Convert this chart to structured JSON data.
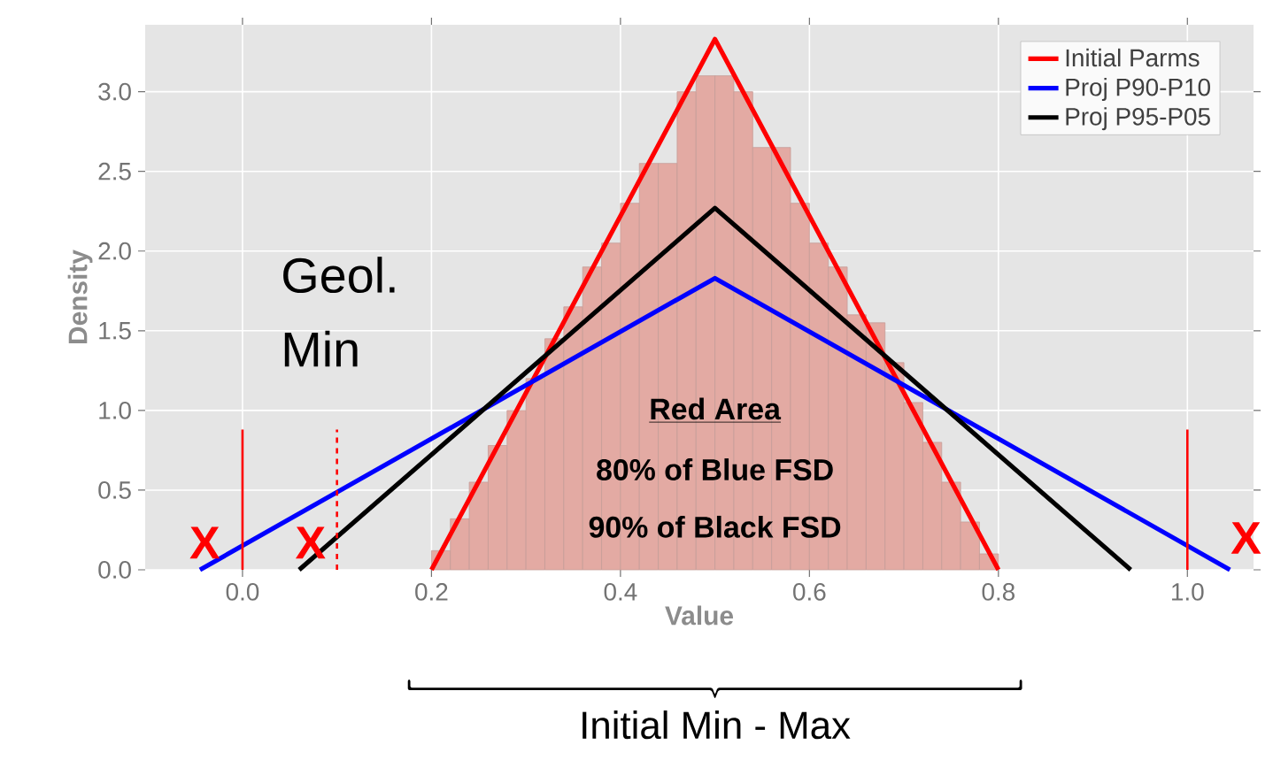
{
  "chart_data": {
    "type": "histogram",
    "xlabel": "Value",
    "ylabel": "Density",
    "bins": [
      0.2,
      0.22,
      0.24,
      0.26,
      0.28,
      0.3,
      0.32,
      0.34,
      0.36,
      0.38,
      0.4,
      0.42,
      0.44,
      0.46,
      0.48,
      0.5,
      0.52,
      0.54,
      0.56,
      0.58,
      0.6,
      0.62,
      0.64,
      0.66,
      0.68,
      0.7,
      0.72,
      0.74,
      0.76,
      0.78,
      0.8
    ],
    "values": [
      0.12,
      0.32,
      0.55,
      0.78,
      1.0,
      1.2,
      1.45,
      1.65,
      1.9,
      2.05,
      2.3,
      2.55,
      2.55,
      3.0,
      3.1,
      3.1,
      3.0,
      2.65,
      2.65,
      2.3,
      2.05,
      1.9,
      1.6,
      1.55,
      1.3,
      1.05,
      0.8,
      0.55,
      0.3,
      0.1
    ],
    "color": "#e3aaa3",
    "series": [
      {
        "type": "line",
        "name": "Initial Parms",
        "color": "#ff0000",
        "x": [
          0.2,
          0.5,
          0.8
        ],
        "values": [
          0,
          3.33,
          0
        ]
      },
      {
        "type": "line",
        "name": "Proj P90-P10",
        "color": "#0000ff",
        "x": [
          -0.045,
          0.5,
          1.045
        ],
        "values": [
          0,
          1.83,
          0
        ]
      },
      {
        "type": "line",
        "name": "Proj P95-P05",
        "color": "#000000",
        "x": [
          0.06,
          0.5,
          0.94
        ],
        "values": [
          0,
          2.27,
          0
        ]
      },
      {
        "type": "line",
        "color": "#ff0000",
        "x": [
          0,
          0
        ],
        "values": [
          0,
          0.88
        ]
      },
      {
        "type": "line",
        "color": "#ff0000",
        "line_style": "dashed",
        "x": [
          0.1,
          0.1
        ],
        "values": [
          0,
          0.88
        ]
      },
      {
        "type": "line",
        "color": "#ff0000",
        "x": [
          1.0,
          1.0
        ],
        "values": [
          0,
          0.88
        ]
      }
    ],
    "xlim": [
      -0.103,
      1.07
    ],
    "ylim": [
      0,
      3.42
    ],
    "xticks": [
      {
        "value": 0,
        "label": "0.0"
      },
      {
        "value": 0.2,
        "label": "0.2"
      },
      {
        "value": 0.4,
        "label": "0.4"
      },
      {
        "value": 0.6,
        "label": "0.6"
      },
      {
        "value": 0.8,
        "label": "0.8"
      },
      {
        "value": 1.0,
        "label": "1.0"
      }
    ],
    "yticks": [
      {
        "value": 0,
        "label": "0.0"
      },
      {
        "value": 0.5,
        "label": "0.5"
      },
      {
        "value": 1.0,
        "label": "1.0"
      },
      {
        "value": 1.5,
        "label": "1.5"
      },
      {
        "value": 2.0,
        "label": "2.0"
      },
      {
        "value": 2.5,
        "label": "2.5"
      },
      {
        "value": 3.0,
        "label": "3.0"
      }
    ],
    "grid": true,
    "legend": "top right",
    "annotations": [
      "X",
      "X",
      "X",
      "Geol. Min",
      "Red Area",
      "80% of Blue FSD",
      "90% of Black FSD",
      "Initial Min - Max"
    ]
  }
}
